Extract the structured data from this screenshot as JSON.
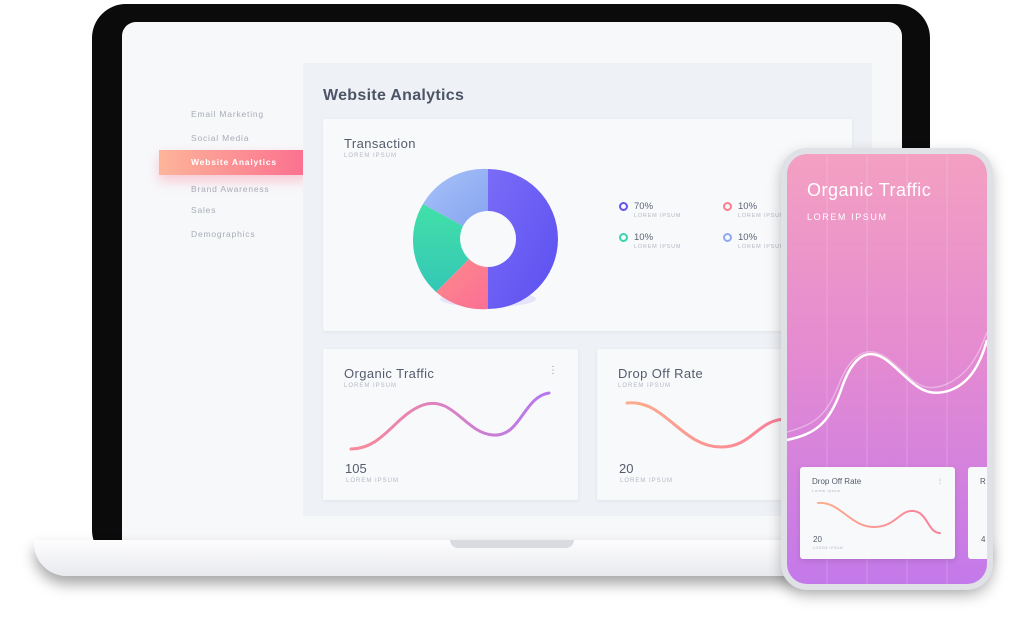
{
  "sidebar": {
    "items": [
      {
        "label": "Email Marketing",
        "active": false
      },
      {
        "label": "Social Media",
        "active": false
      },
      {
        "label": "Website Analytics",
        "active": true
      },
      {
        "label": "Brand Awareness",
        "active": false
      },
      {
        "label": "Sales",
        "active": false
      },
      {
        "label": "Demographics",
        "active": false
      }
    ]
  },
  "page": {
    "title": "Website Analytics"
  },
  "transaction": {
    "title": "Transaction",
    "subtitle": "LOREM IPSUM",
    "legend": [
      {
        "value": "70%",
        "label": "LOREM IPSUM",
        "color": "#6254f3"
      },
      {
        "value": "10%",
        "label": "LOREM IPSUM",
        "color": "#fb7d8f"
      },
      {
        "value": "10%",
        "label": "LOREM IPSUM",
        "color": "#39d3b0"
      },
      {
        "value": "10%",
        "label": "LOREM IPSUM",
        "color": "#8fa8f2"
      }
    ]
  },
  "organic_traffic": {
    "title": "Organic Traffic",
    "subtitle": "LOREM IPSUM",
    "value": "105",
    "value_label": "LOREM IPSUM"
  },
  "drop_off_rate": {
    "title": "Drop Off Rate",
    "subtitle": "LOREM IPSUM",
    "value": "20",
    "value_label": "LOREM IPSUM"
  },
  "phone": {
    "title": "Organic Traffic",
    "subtitle": "LOREM IPSUM",
    "card": {
      "title": "Drop Off Rate",
      "subtitle": "Lorem ipsum",
      "value": "20",
      "value_label": "LOREM IPSUM"
    },
    "card2": {
      "title": "R",
      "value": "4"
    }
  },
  "colors": {
    "accent_start": "#fdb49a",
    "accent_end": "#fb6f8f",
    "donut_purple": "#6254f3",
    "donut_pink": "#fb7d8f",
    "donut_green": "#39d3b0",
    "donut_blue": "#8fa8f2"
  }
}
